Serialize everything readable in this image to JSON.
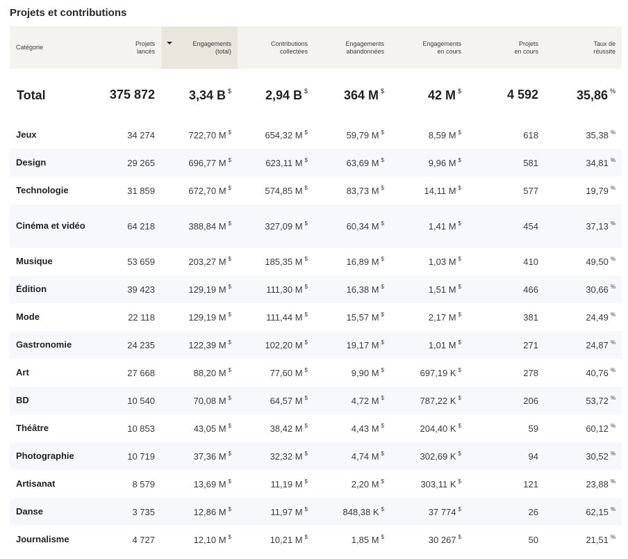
{
  "title": "Projets et contributions",
  "columns": [
    {
      "l1": "Catégorie",
      "l2": ""
    },
    {
      "l1": "Projets",
      "l2": "lancés"
    },
    {
      "l1": "Engagements",
      "l2": "(total)"
    },
    {
      "l1": "Contributions",
      "l2": "collectées"
    },
    {
      "l1": "Engagements",
      "l2": "abandonnées"
    },
    {
      "l1": "Engagements",
      "l2": "en cours"
    },
    {
      "l1": "Projets",
      "l2": "en cours"
    },
    {
      "l1": "Taux de",
      "l2": "réussite"
    }
  ],
  "sorted_column_index": 2,
  "total": {
    "label": "Total",
    "cells": [
      {
        "v": "375 872",
        "u": ""
      },
      {
        "v": "3,34 B",
        "u": "$"
      },
      {
        "v": "2,94 B",
        "u": "$"
      },
      {
        "v": "364 M",
        "u": "$"
      },
      {
        "v": "42 M",
        "u": "$"
      },
      {
        "v": "4 592",
        "u": ""
      },
      {
        "v": "35,86",
        "u": "%"
      }
    ]
  },
  "rows": [
    {
      "label": "Jeux",
      "cells": [
        {
          "v": "34 274",
          "u": ""
        },
        {
          "v": "722,70 M",
          "u": "$"
        },
        {
          "v": "654,32 M",
          "u": "$"
        },
        {
          "v": "59,79 M",
          "u": "$"
        },
        {
          "v": "8,59 M",
          "u": "$"
        },
        {
          "v": "618",
          "u": ""
        },
        {
          "v": "35,38",
          "u": "%"
        }
      ]
    },
    {
      "label": "Design",
      "cells": [
        {
          "v": "29 265",
          "u": ""
        },
        {
          "v": "696,77 M",
          "u": "$"
        },
        {
          "v": "623,11 M",
          "u": "$"
        },
        {
          "v": "63,69 M",
          "u": "$"
        },
        {
          "v": "9,96 M",
          "u": "$"
        },
        {
          "v": "581",
          "u": ""
        },
        {
          "v": "34,81",
          "u": "%"
        }
      ]
    },
    {
      "label": "Technologie",
      "cells": [
        {
          "v": "31 859",
          "u": ""
        },
        {
          "v": "672,70 M",
          "u": "$"
        },
        {
          "v": "574,85 M",
          "u": "$"
        },
        {
          "v": "83,73 M",
          "u": "$"
        },
        {
          "v": "14,11 M",
          "u": "$"
        },
        {
          "v": "577",
          "u": ""
        },
        {
          "v": "19,79",
          "u": "%"
        }
      ]
    },
    {
      "label": "Cinéma et vidéo",
      "cells": [
        {
          "v": "64 218",
          "u": ""
        },
        {
          "v": "388,84 M",
          "u": "$"
        },
        {
          "v": "327,09 M",
          "u": "$"
        },
        {
          "v": "60,34 M",
          "u": "$"
        },
        {
          "v": "1,41 M",
          "u": "$"
        },
        {
          "v": "454",
          "u": ""
        },
        {
          "v": "37,13",
          "u": "%"
        }
      ]
    },
    {
      "label": "Musique",
      "cells": [
        {
          "v": "53 659",
          "u": ""
        },
        {
          "v": "203,27 M",
          "u": "$"
        },
        {
          "v": "185,35 M",
          "u": "$"
        },
        {
          "v": "16,89 M",
          "u": "$"
        },
        {
          "v": "1,03 M",
          "u": "$"
        },
        {
          "v": "410",
          "u": ""
        },
        {
          "v": "49,50",
          "u": "%"
        }
      ]
    },
    {
      "label": "Édition",
      "cells": [
        {
          "v": "39 423",
          "u": ""
        },
        {
          "v": "129,19 M",
          "u": "$"
        },
        {
          "v": "111,30 M",
          "u": "$"
        },
        {
          "v": "16,38 M",
          "u": "$"
        },
        {
          "v": "1,51 M",
          "u": "$"
        },
        {
          "v": "466",
          "u": ""
        },
        {
          "v": "30,66",
          "u": "%"
        }
      ]
    },
    {
      "label": "Mode",
      "cells": [
        {
          "v": "22 118",
          "u": ""
        },
        {
          "v": "129,19 M",
          "u": "$"
        },
        {
          "v": "111,44 M",
          "u": "$"
        },
        {
          "v": "15,57 M",
          "u": "$"
        },
        {
          "v": "2,17 M",
          "u": "$"
        },
        {
          "v": "381",
          "u": ""
        },
        {
          "v": "24,49",
          "u": "%"
        }
      ]
    },
    {
      "label": "Gastronomie",
      "cells": [
        {
          "v": "24 235",
          "u": ""
        },
        {
          "v": "122,39 M",
          "u": "$"
        },
        {
          "v": "102,20 M",
          "u": "$"
        },
        {
          "v": "19,17 M",
          "u": "$"
        },
        {
          "v": "1,01 M",
          "u": "$"
        },
        {
          "v": "271",
          "u": ""
        },
        {
          "v": "24,87",
          "u": "%"
        }
      ]
    },
    {
      "label": "Art",
      "cells": [
        {
          "v": "27 668",
          "u": ""
        },
        {
          "v": "88,20 M",
          "u": "$"
        },
        {
          "v": "77,60 M",
          "u": "$"
        },
        {
          "v": "9,90 M",
          "u": "$"
        },
        {
          "v": "697,19 K",
          "u": "$"
        },
        {
          "v": "278",
          "u": ""
        },
        {
          "v": "40,76",
          "u": "%"
        }
      ]
    },
    {
      "label": "BD",
      "cells": [
        {
          "v": "10 540",
          "u": ""
        },
        {
          "v": "70,08 M",
          "u": "$"
        },
        {
          "v": "64,57 M",
          "u": "$"
        },
        {
          "v": "4,72 M",
          "u": "$"
        },
        {
          "v": "787,22 K",
          "u": "$"
        },
        {
          "v": "206",
          "u": ""
        },
        {
          "v": "53,72",
          "u": "%"
        }
      ]
    },
    {
      "label": "Théâtre",
      "cells": [
        {
          "v": "10 853",
          "u": ""
        },
        {
          "v": "43,05 M",
          "u": "$"
        },
        {
          "v": "38,42 M",
          "u": "$"
        },
        {
          "v": "4,43 M",
          "u": "$"
        },
        {
          "v": "204,40 K",
          "u": "$"
        },
        {
          "v": "59",
          "u": ""
        },
        {
          "v": "60,12",
          "u": "%"
        }
      ]
    },
    {
      "label": "Photographie",
      "cells": [
        {
          "v": "10 719",
          "u": ""
        },
        {
          "v": "37,36 M",
          "u": "$"
        },
        {
          "v": "32,32 M",
          "u": "$"
        },
        {
          "v": "4,74 M",
          "u": "$"
        },
        {
          "v": "302,69 K",
          "u": "$"
        },
        {
          "v": "94",
          "u": ""
        },
        {
          "v": "30,52",
          "u": "%"
        }
      ]
    },
    {
      "label": "Artisanat",
      "cells": [
        {
          "v": "8 579",
          "u": ""
        },
        {
          "v": "13,69 M",
          "u": "$"
        },
        {
          "v": "11,19 M",
          "u": "$"
        },
        {
          "v": "2,20 M",
          "u": "$"
        },
        {
          "v": "303,11 K",
          "u": "$"
        },
        {
          "v": "121",
          "u": ""
        },
        {
          "v": "23,88",
          "u": "%"
        }
      ]
    },
    {
      "label": "Danse",
      "cells": [
        {
          "v": "3 735",
          "u": ""
        },
        {
          "v": "12,86 M",
          "u": "$"
        },
        {
          "v": "11,97 M",
          "u": "$"
        },
        {
          "v": "848,38 K",
          "u": "$"
        },
        {
          "v": "37 774",
          "u": "$"
        },
        {
          "v": "26",
          "u": ""
        },
        {
          "v": "62,15",
          "u": "%"
        }
      ]
    },
    {
      "label": "Journalisme",
      "cells": [
        {
          "v": "4 727",
          "u": ""
        },
        {
          "v": "12,10 M",
          "u": "$"
        },
        {
          "v": "10,21 M",
          "u": "$"
        },
        {
          "v": "1,85 M",
          "u": "$"
        },
        {
          "v": "30 267",
          "u": "$"
        },
        {
          "v": "50",
          "u": ""
        },
        {
          "v": "21,51",
          "u": "%"
        }
      ]
    }
  ]
}
